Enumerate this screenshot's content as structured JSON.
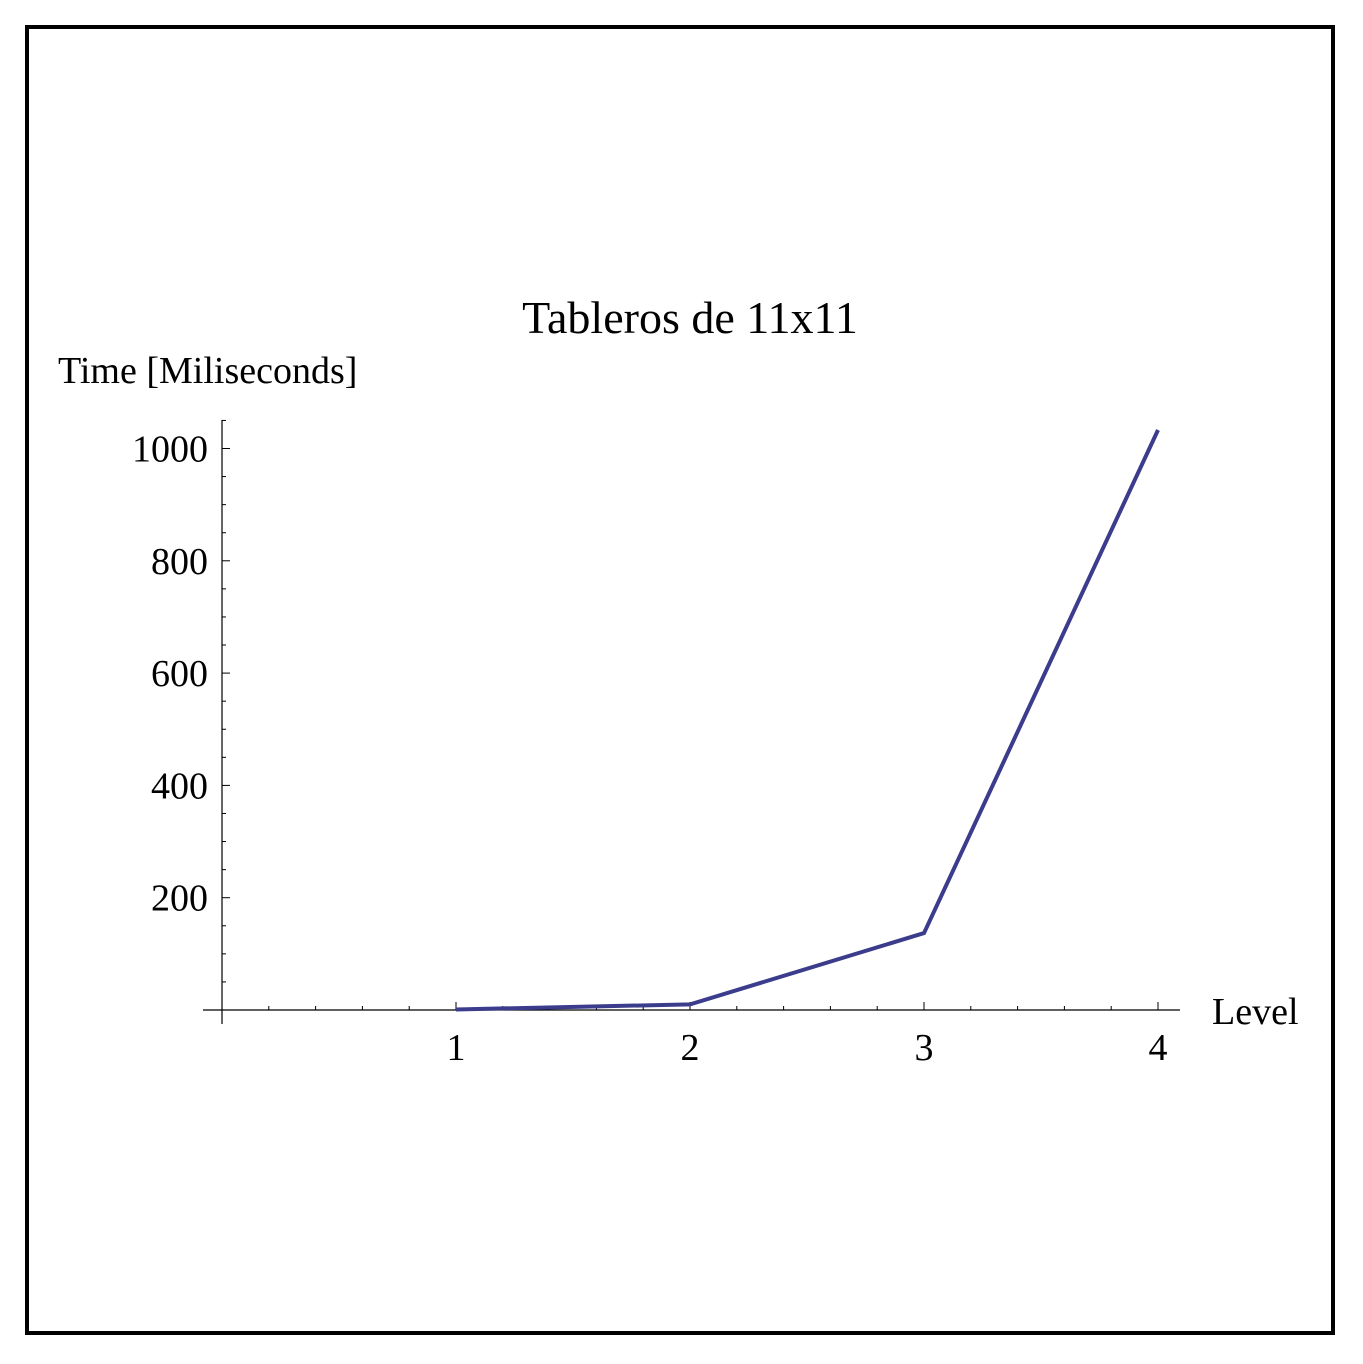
{
  "chart_data": {
    "type": "line",
    "title": "Tableros de 11x11",
    "xlabel": "Level",
    "ylabel": "Time [Miliseconds]",
    "x": [
      1,
      2,
      3,
      4
    ],
    "series": [
      {
        "values": [
          1,
          10,
          137,
          1033
        ]
      }
    ],
    "xlim": [
      0,
      4.1
    ],
    "ylim": [
      0,
      1050
    ],
    "xticks": [
      1,
      2,
      3,
      4
    ],
    "xtick_labels": [
      "1",
      "2",
      "3",
      "4"
    ],
    "yticks": [
      200,
      400,
      600,
      800,
      1000
    ],
    "ytick_labels": [
      "200",
      "400",
      "600",
      "800",
      "1000"
    ],
    "x_minor_step": 0.2,
    "y_minor_step": 50,
    "grid": false,
    "line_color": "#3c3c8c"
  }
}
